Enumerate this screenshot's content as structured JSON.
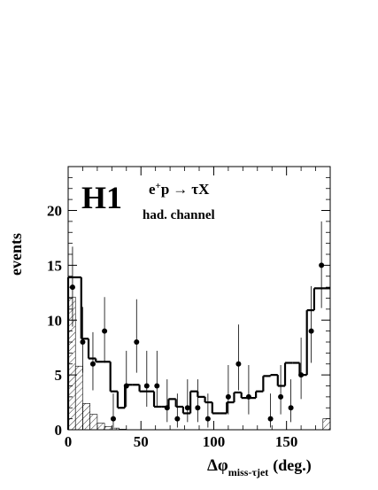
{
  "chart_data": {
    "type": "histogram",
    "experiment_label": "H1",
    "process_label": {
      "e": "e",
      "sup": "+",
      "p": "p",
      "arrow": "→",
      "final": "τX"
    },
    "channel_label": "had. channel",
    "xlabel": {
      "main": "Δφ",
      "sub": "miss-τjet",
      "unit": "(deg.)"
    },
    "ylabel": "events",
    "xlim": [
      0,
      180
    ],
    "ylim": [
      0,
      24
    ],
    "x_ticks": [
      0,
      50,
      100,
      150
    ],
    "y_ticks": [
      0,
      5,
      10,
      15,
      20
    ],
    "bin_edges": [
      0,
      9,
      14,
      19,
      24,
      29,
      34,
      39,
      44,
      49,
      54,
      59,
      64,
      69,
      74,
      79,
      84,
      89,
      94,
      99,
      104,
      109,
      114,
      119,
      124,
      129,
      134,
      139,
      144,
      149,
      154,
      159,
      164,
      169,
      174,
      180
    ],
    "histogram_values": [
      13.9,
      8.3,
      6.5,
      6.2,
      6.2,
      3.5,
      2.0,
      4.1,
      4.1,
      3.5,
      3.5,
      2.1,
      2.1,
      2.8,
      2.1,
      1.5,
      3.5,
      3.0,
      2.5,
      1.5,
      1.5,
      2.5,
      3.4,
      2.9,
      2.9,
      3.5,
      4.9,
      5.0,
      4.0,
      6.1,
      6.1,
      5.0,
      10.9,
      12.9,
      12.9
    ],
    "hatched_background": {
      "bin_edges": [
        0,
        5,
        10,
        15,
        20,
        25,
        30,
        35,
        40,
        175,
        180
      ],
      "values": [
        12.1,
        5.8,
        2.4,
        1.4,
        0.6,
        0.3,
        0.15,
        0.05,
        0,
        1.0
      ]
    },
    "data_points": [
      {
        "x": 3,
        "y": 13,
        "err_up": 3.7,
        "err_down": 3.6
      },
      {
        "x": 10,
        "y": 8,
        "err_up": 3.2,
        "err_down": 2.8
      },
      {
        "x": 17,
        "y": 6,
        "err_up": 2.9,
        "err_down": 2.4
      },
      {
        "x": 25,
        "y": 9,
        "err_up": 3.1,
        "err_down": 2.9
      },
      {
        "x": 31,
        "y": 1,
        "err_up": 2.3,
        "err_down": 0.8
      },
      {
        "x": 40,
        "y": 4,
        "err_up": 3.2,
        "err_down": 1.9
      },
      {
        "x": 47,
        "y": 8,
        "err_up": 3.9,
        "err_down": 2.8
      },
      {
        "x": 54,
        "y": 4,
        "err_up": 3.2,
        "err_down": 1.9
      },
      {
        "x": 61,
        "y": 4,
        "err_up": 3.2,
        "err_down": 1.9
      },
      {
        "x": 68,
        "y": 2,
        "err_up": 2.6,
        "err_down": 1.3
      },
      {
        "x": 75,
        "y": 1,
        "err_up": 2.3,
        "err_down": 0.8
      },
      {
        "x": 82,
        "y": 2,
        "err_up": 2.6,
        "err_down": 1.3
      },
      {
        "x": 89,
        "y": 2,
        "err_up": 2.6,
        "err_down": 1.3
      },
      {
        "x": 96,
        "y": 1,
        "err_up": 2.3,
        "err_down": 0.8
      },
      {
        "x": 110,
        "y": 3,
        "err_up": 2.9,
        "err_down": 1.6
      },
      {
        "x": 117,
        "y": 6,
        "err_up": 3.6,
        "err_down": 2.4
      },
      {
        "x": 124,
        "y": 3,
        "err_up": 2.9,
        "err_down": 1.6
      },
      {
        "x": 139,
        "y": 1,
        "err_up": 2.3,
        "err_down": 0.8
      },
      {
        "x": 146,
        "y": 3,
        "err_up": 2.9,
        "err_down": 1.6
      },
      {
        "x": 153,
        "y": 2,
        "err_up": 2.6,
        "err_down": 1.3
      },
      {
        "x": 160,
        "y": 5,
        "err_up": 3.4,
        "err_down": 2.2
      },
      {
        "x": 167,
        "y": 9,
        "err_up": 4.1,
        "err_down": 2.9
      },
      {
        "x": 174,
        "y": 15,
        "err_up": 4.0,
        "err_down": 3.9
      }
    ]
  }
}
